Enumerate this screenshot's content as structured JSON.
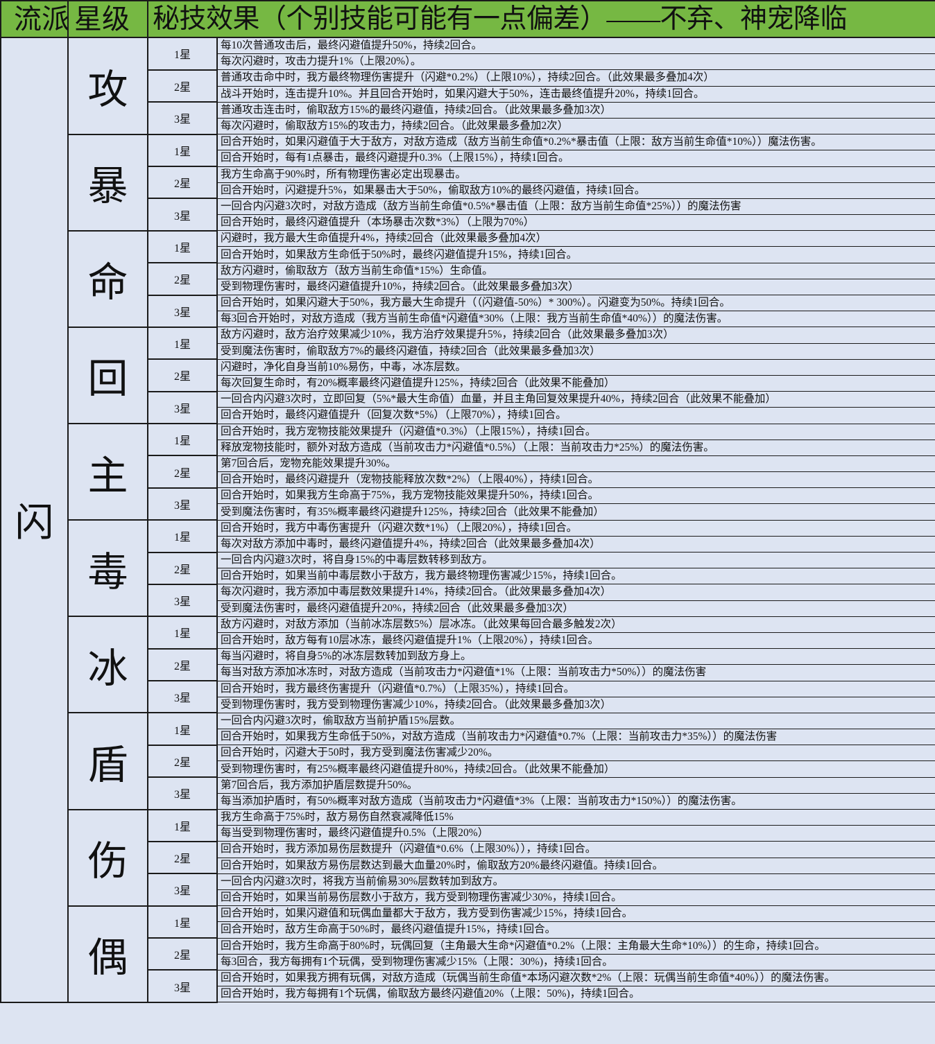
{
  "header": {
    "col_school": "流派组合",
    "col_star": "星级",
    "col_effect": "秘技效果（个别技能可能有一点偏差）——不弃、神宠降临"
  },
  "school": "闪",
  "colors": {
    "header_bg": "#76b843",
    "body_bg": "#dde4f2"
  },
  "groups": [
    {
      "name": "攻",
      "stars": [
        {
          "label": "1星",
          "effects": [
            "每10次普通攻击后，最终闪避值提升50%，持续2回合。",
            "每次闪避时，攻击力提升1%（上限20%）。"
          ]
        },
        {
          "label": "2星",
          "effects": [
            "普通攻击命中时，我方最终物理伤害提升（闪避*0.2%）（上限10%），持续2回合。（此效果最多叠加4次）",
            "战斗开始时，连击提升10%。并且回合开始时，如果闪避大于50%，连击最终值提升20%，持续1回合。"
          ]
        },
        {
          "label": "3星",
          "effects": [
            "普通攻击连击时，偷取敌方15%的最终闪避值，持续2回合。（此效果最多叠加3次）",
            "每次闪避时，偷取敌方15%的攻击力，持续2回合。（此效果最多叠加2次）"
          ]
        }
      ]
    },
    {
      "name": "暴",
      "stars": [
        {
          "label": "1星",
          "effects": [
            "回合开始时，如果闪避值于大于敌方，对敌方造成（敌方当前生命值*0.2%*暴击值（上限：敌方当前生命值*10%））魔法伤害。",
            "回合开始时，每有1点暴击，最终闪避提升0.3%（上限15%），持续1回合。"
          ]
        },
        {
          "label": "2星",
          "effects": [
            "我方生命高于90%时，所有物理伤害必定出现暴击。",
            "回合开始时，闪避提升5%，如果暴击大于50%，偷取敌方10%的最终闪避值，持续1回合。"
          ]
        },
        {
          "label": "3星",
          "effects": [
            "一回合内闪避3次时，对敌方造成（敌方当前生命值*0.5%*暴击值（上限：敌方当前生命值*25%））的魔法伤害",
            "回合开始时，最终闪避值提升（本场暴击次数*3%）（上限为70%）"
          ]
        }
      ]
    },
    {
      "name": "命",
      "stars": [
        {
          "label": "1星",
          "effects": [
            "闪避时，我方最大生命值提升4%，持续2回合（此效果最多叠加4次）",
            "回合开始时，如果敌方生命低于50%时，最终闪避值提升15%，持续1回合。"
          ]
        },
        {
          "label": "2星",
          "effects": [
            "敌方闪避时，偷取敌方（敌方当前生命值*15%）生命值。",
            "受到物理伤害时，最终闪避值提升10%，持续2回合。（此效果最多叠加3次）"
          ]
        },
        {
          "label": "3星",
          "effects": [
            "回合开始时，如果闪避大于50%，我方最大生命提升（（闪避值-50%）* 300%）。闪避变为50%。持续1回合。",
            "每3回合开始时，对敌方造成（我方当前生命值*闪避值*30%（上限：我方当前生命值*40%））的魔法伤害。"
          ]
        }
      ]
    },
    {
      "name": "回",
      "stars": [
        {
          "label": "1星",
          "effects": [
            "敌方闪避时，敌方治疗效果减少10%，我方治疗效果提升5%，持续2回合（此效果最多叠加3次）",
            "受到魔法伤害时，偷取敌方7%的最终闪避值，持续2回合（此效果最多叠加3次）"
          ]
        },
        {
          "label": "2星",
          "effects": [
            "闪避时，净化自身当前10%易伤，中毒，冰冻层数。",
            "每次回复生命时，有20%概率最终闪避值提升125%，持续2回合（此效果不能叠加）"
          ]
        },
        {
          "label": "3星",
          "effects": [
            "一回合内闪避3次时，立即回复（5%*最大生命值）血量，并且主角回复效果提升40%，持续2回合（此效果不能叠加）",
            "回合开始时，最终闪避值提升（回复次数*5%）（上限70%），持续1回合。"
          ]
        }
      ]
    },
    {
      "name": "主",
      "stars": [
        {
          "label": "1星",
          "effects": [
            "回合开始时，我方宠物技能效果提升（闪避值*0.3%）（上限15%），持续1回合。",
            "释放宠物技能时，额外对敌方造成（当前攻击力*闪避值*0.5%）（上限：当前攻击力*25%）的魔法伤害。"
          ]
        },
        {
          "label": "2星",
          "effects": [
            "第7回合后，宠物充能效果提升30%。",
            "回合开始时，最终闪避提升（宠物技能释放次数*2%）（上限40%），持续1回合。"
          ]
        },
        {
          "label": "3星",
          "effects": [
            "回合开始时，如果我方生命高于75%，我方宠物技能效果提升50%，持续1回合。",
            "受到魔法伤害时，有35%概率最终闪避提升125%，持续2回合（此效果不能叠加）"
          ]
        }
      ]
    },
    {
      "name": "毒",
      "stars": [
        {
          "label": "1星",
          "effects": [
            "回合开始时，我方中毒伤害提升（闪避次数*1%）（上限20%），持续1回合。",
            "每次对敌方添加中毒时，最终闪避值提升4%，持续2回合（此效果最多叠加4次）"
          ]
        },
        {
          "label": "2星",
          "effects": [
            "一回合内闪避3次时，将自身15%的中毒层数转移到敌方。",
            "回合开始时，如果当前中毒层数小于敌方，我方最终物理伤害减少15%，持续1回合。"
          ]
        },
        {
          "label": "3星",
          "effects": [
            "每次闪避时，我方添加中毒层数效果提升14%，持续2回合。（此效果最多叠加4次）",
            "受到魔法伤害时，最终闪避值提升20%，持续2回合（此效果最多叠加3次）"
          ]
        }
      ]
    },
    {
      "name": "冰",
      "stars": [
        {
          "label": "1星",
          "effects": [
            "敌方闪避时，对敌方添加（当前冰冻层数5%）层冰冻。（此效果每回合最多触发2次）",
            "回合开始时，敌方每有10层冰冻，最终闪避值提升1%（上限20%），持续1回合。"
          ]
        },
        {
          "label": "2星",
          "effects": [
            "每当闪避时，将自身5%的冰冻层数转加到敌方身上。",
            "每当对敌方添加冰冻时，对敌方造成（当前攻击力*闪避值*1%（上限：当前攻击力*50%））的魔法伤害"
          ]
        },
        {
          "label": "3星",
          "effects": [
            "回合开始时，我方最终伤害提升（闪避值*0.7%）（上限35%），持续1回合。",
            "受到物理伤害时，我方受到物理伤害减少10%，持续2回合。（此效果最多叠加3次）"
          ]
        }
      ]
    },
    {
      "name": "盾",
      "stars": [
        {
          "label": "1星",
          "effects": [
            "一回合内闪避3次时，偷取敌方当前护盾15%层数。",
            "回合开始时，如果我方生命低于50%，对敌方造成（当前攻击力*闪避值*0.7%（上限：当前攻击力*35%））的魔法伤害"
          ]
        },
        {
          "label": "2星",
          "effects": [
            "回合开始时，闪避大于50时，我方受到魔法伤害减少20%。",
            "受到物理伤害时，有25%概率最终闪避值提升80%，持续2回合。（此效果不能叠加）"
          ]
        },
        {
          "label": "3星",
          "effects": [
            "第7回合后，我方添加护盾层数提升50%。",
            "每当添加护盾时，有50%概率对敌方造成（当前攻击力*闪避值*3%（上限：当前攻击力*150%））的魔法伤害。"
          ]
        }
      ]
    },
    {
      "name": "伤",
      "stars": [
        {
          "label": "1星",
          "effects": [
            "我方生命高于75%时，敌方易伤自然衰减降低15%",
            "每当受到物理伤害时，最终闪避值提升0.5%（上限20%）"
          ]
        },
        {
          "label": "2星",
          "effects": [
            "回合开始时，我方添加易伤层数提升（闪避值*0.6%（上限30%）），持续1回合。",
            "回合开始时，如果敌方易伤层数达到最大血量20%时，偷取敌方20%最终闪避值。持续1回合。"
          ]
        },
        {
          "label": "3星",
          "effects": [
            "一回合内闪避3次时，将我方当前偷易30%层数转加到敌方。",
            "回合开始时，如果当前易伤层数小于敌方，我方受到物理伤害减少30%，持续1回合。"
          ]
        }
      ]
    },
    {
      "name": "偶",
      "stars": [
        {
          "label": "1星",
          "effects": [
            "回合开始时，如果闪避值和玩偶血量都大于敌方，我方受到伤害减少15%，持续1回合。",
            "回合开始时，敌方生命高于50%时，最终闪避值提升15%，持续1回合。"
          ]
        },
        {
          "label": "2星",
          "effects": [
            "回合开始时，我方生命高于80%时，玩偶回复（主角最大生命*闪避值*0.2%（上限：主角最大生命*10%））的生命，持续1回合。",
            "每3回合，我方每拥有1个玩偶，受到物理伤害减少15%（上限：30%)，持续1回合。"
          ]
        },
        {
          "label": "3星",
          "effects": [
            "回合开始时，如果我方拥有玩偶，对敌方造成（玩偶当前生命值*本场闪避次数*2%（上限：玩偶当前生命值*40%））的魔法伤害。",
            "回合开始时，我方每拥有1个玩偶，偷取敌方最终闪避值20%（上限：50%)，持续1回合。"
          ]
        }
      ]
    }
  ]
}
